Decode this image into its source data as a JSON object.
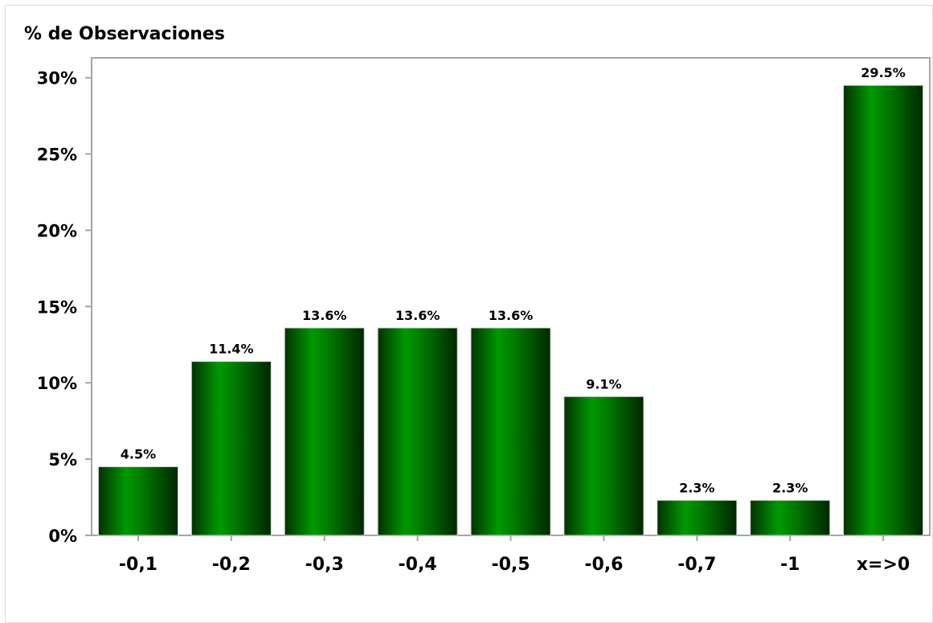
{
  "chart_data": {
    "type": "bar",
    "title": "% de Observaciones",
    "categories": [
      "-0,1",
      "-0,2",
      "-0,3",
      "-0,4",
      "-0,5",
      "-0,6",
      "-0,7",
      "-1",
      "x=>0"
    ],
    "values": [
      4.5,
      11.4,
      13.6,
      13.6,
      13.6,
      9.1,
      2.3,
      2.3,
      29.5
    ],
    "data_labels": [
      "4.5%",
      "11.4%",
      "13.6%",
      "13.6%",
      "13.6%",
      "9.1%",
      "2.3%",
      "2.3%",
      "29.5%"
    ],
    "y_ticks": [
      0,
      5,
      10,
      15,
      20,
      25,
      30
    ],
    "y_tick_labels": [
      "0%",
      "5%",
      "10%",
      "15%",
      "20%",
      "25%",
      "30%"
    ],
    "ylim": [
      0,
      31.3
    ],
    "grid": false,
    "legend": "none",
    "colors": {
      "bar_dark": "#003300",
      "bar_light": "#009900",
      "axis": "#a6a6a6"
    }
  }
}
